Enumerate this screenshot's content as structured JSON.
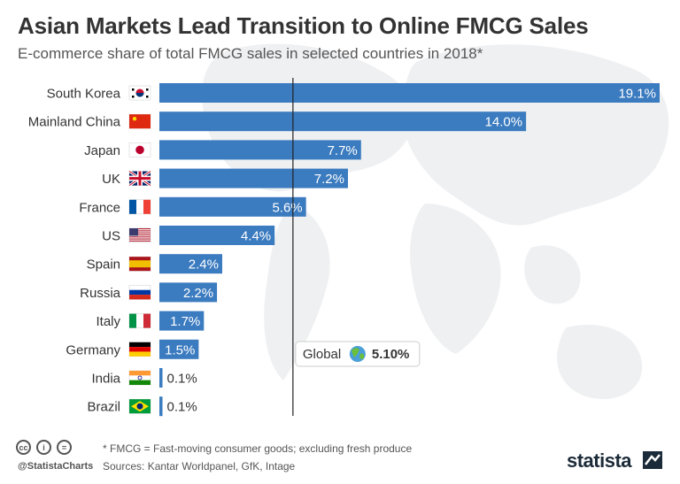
{
  "header": {
    "title": "Asian Markets Lead Transition to Online FMCG Sales",
    "subtitle": "E-commerce share of total FMCG sales in selected countries in 2018*"
  },
  "colors": {
    "bar": "#3b7bbf",
    "text": "#333333",
    "map": "#eef0f2",
    "global_line": "#222222"
  },
  "chart_data": {
    "type": "bar",
    "orientation": "horizontal",
    "categories": [
      "South Korea",
      "Mainland China",
      "Japan",
      "UK",
      "France",
      "US",
      "Spain",
      "Russia",
      "Italy",
      "Germany",
      "India",
      "Brazil"
    ],
    "values": [
      19.1,
      14.0,
      7.7,
      7.2,
      5.6,
      4.4,
      2.4,
      2.2,
      1.7,
      1.5,
      0.1,
      0.1
    ],
    "value_labels": [
      "19.1%",
      "14.0%",
      "7.7%",
      "7.2%",
      "5.6%",
      "4.4%",
      "2.4%",
      "2.2%",
      "1.7%",
      "1.5%",
      "0.1%",
      "0.1%"
    ],
    "flags": [
      "south-korea",
      "china",
      "japan",
      "uk",
      "france",
      "us",
      "spain",
      "russia",
      "italy",
      "germany",
      "india",
      "brazil"
    ],
    "xlim": [
      0,
      19.1
    ],
    "reference_line": {
      "label": "Global",
      "value": 5.1,
      "value_label": "5.10%",
      "icon": "globe-icon"
    },
    "title": "Asian Markets Lead Transition to Online FMCG Sales",
    "xlabel": "",
    "ylabel": "",
    "grid": false,
    "legend": "none"
  },
  "footer": {
    "note": "* FMCG = Fast-moving consumer goods; excluding fresh produce",
    "sources": "Sources: Kantar Worldpanel, GfK, Intage",
    "handle": "@StatistaCharts",
    "brand": "statista",
    "license_icons": [
      "cc",
      "i",
      "="
    ]
  }
}
